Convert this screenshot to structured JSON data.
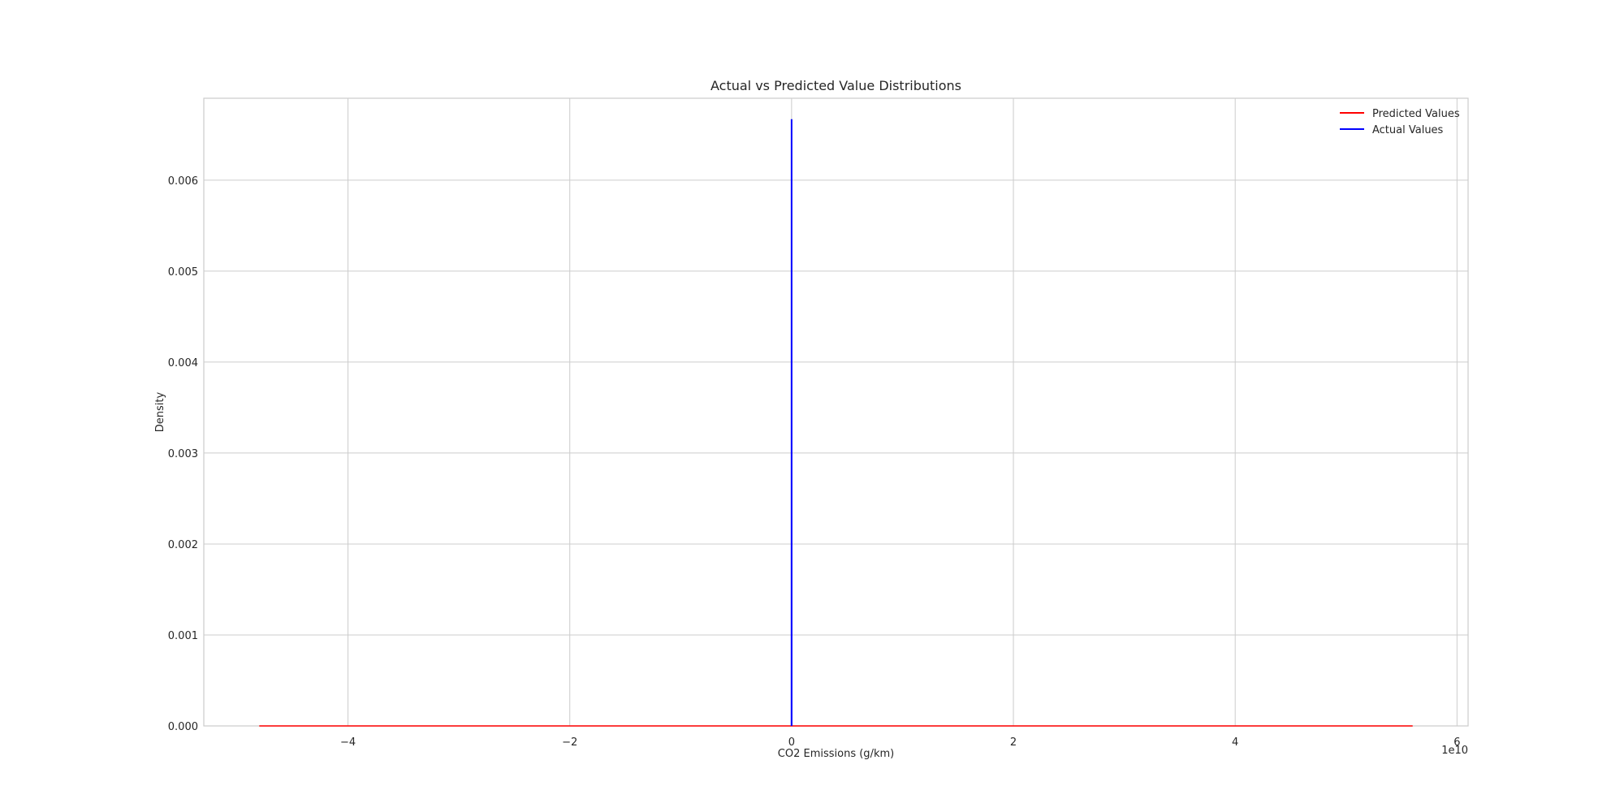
{
  "chart_data": {
    "type": "line",
    "title": "Actual vs Predicted Value Distributions",
    "xlabel": "CO2 Emissions (g/km)",
    "ylabel": "Density",
    "x_offset_label": "1e10",
    "xlim": [
      -5.3,
      6.1
    ],
    "ylim": [
      0,
      0.0069
    ],
    "x_ticks": [
      -4,
      -2,
      0,
      2,
      4,
      6
    ],
    "x_tick_labels": [
      "−4",
      "−2",
      "0",
      "2",
      "4",
      "6"
    ],
    "y_ticks": [
      0.0,
      0.001,
      0.002,
      0.003,
      0.004,
      0.005,
      0.006
    ],
    "y_tick_labels": [
      "0.000",
      "0.001",
      "0.002",
      "0.003",
      "0.004",
      "0.005",
      "0.006"
    ],
    "grid": true,
    "legend_position": "top-right",
    "series": [
      {
        "name": "Predicted Values",
        "color": "#ff0000",
        "x": [
          -4.8,
          -2,
          0,
          2,
          5.6
        ],
        "y": [
          0.0,
          0.0,
          0.0,
          0.0,
          0.0
        ]
      },
      {
        "name": "Actual Values",
        "color": "#0000ff",
        "x": [
          -0.0005,
          0.0,
          0.0005
        ],
        "y": [
          0.0,
          0.00667,
          0.0
        ]
      }
    ]
  }
}
